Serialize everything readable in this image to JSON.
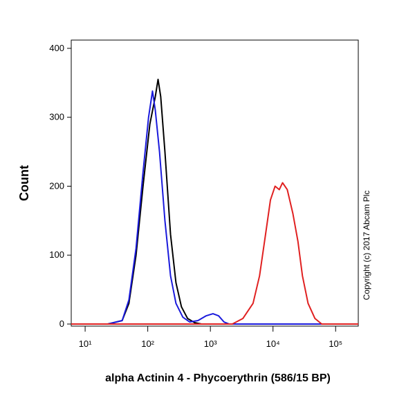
{
  "chart_data": {
    "type": "line",
    "xscale": "log",
    "xlabel": "alpha Actinin 4 - Phycoerythrin (586/15 BP)",
    "ylabel": "Count",
    "annotation": "Copyright (c) 2017 Abcam Plc",
    "xlim": [
      6,
      230000
    ],
    "ylim": [
      -3,
      412
    ],
    "xticks": [
      {
        "value": 10,
        "label": "10¹"
      },
      {
        "value": 100,
        "label": "10²"
      },
      {
        "value": 1000,
        "label": "10³"
      },
      {
        "value": 10000,
        "label": "10⁴"
      },
      {
        "value": 100000,
        "label": "10⁵"
      }
    ],
    "yticks": [
      0,
      100,
      200,
      300,
      400
    ],
    "series": [
      {
        "color": "#000000",
        "x": [
          6,
          23,
          39,
          50,
          65,
          84,
          108,
          132,
          146,
          161,
          188,
          231,
          282,
          345,
          433,
          560,
          720,
          230000
        ],
        "values": [
          0,
          0,
          5,
          30,
          100,
          200,
          290,
          330,
          355,
          330,
          250,
          130,
          60,
          25,
          8,
          2,
          0,
          0
        ]
      },
      {
        "color": "#1a1adc",
        "x": [
          6,
          23,
          39,
          50,
          65,
          84,
          103,
          119,
          132,
          154,
          188,
          231,
          282,
          363,
          468,
          634,
          858,
          1100,
          1350,
          1650,
          2000,
          230000
        ],
        "values": [
          0,
          0,
          5,
          35,
          110,
          220,
          300,
          338,
          310,
          250,
          150,
          70,
          30,
          10,
          3,
          5,
          12,
          15,
          12,
          3,
          0,
          0
        ]
      },
      {
        "color": "#e02020",
        "x": [
          6,
          2240,
          3300,
          4800,
          6100,
          7600,
          9100,
          10800,
          12600,
          14200,
          16900,
          20800,
          25000,
          29500,
          36300,
          46800,
          60000,
          230000
        ],
        "values": [
          0,
          0,
          8,
          30,
          70,
          130,
          180,
          200,
          195,
          205,
          195,
          160,
          120,
          70,
          30,
          8,
          0,
          0
        ]
      }
    ]
  }
}
